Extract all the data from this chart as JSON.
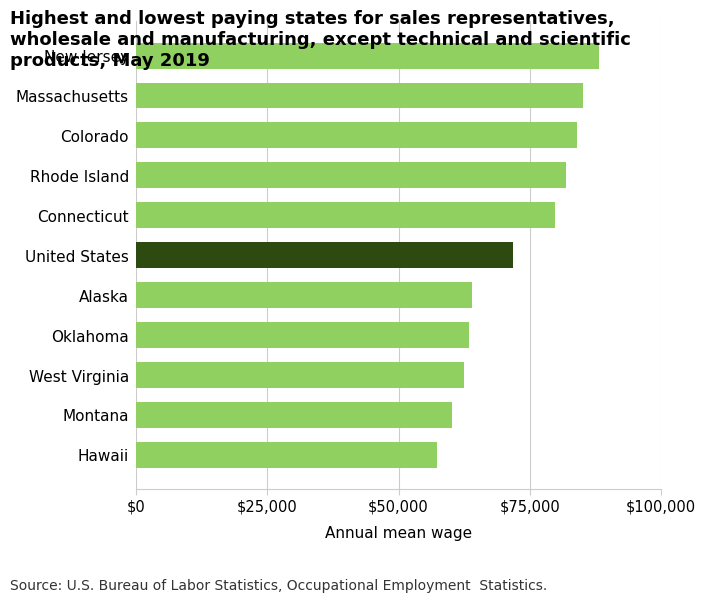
{
  "title": "Highest and lowest paying states for sales representatives,\nwholesale and manufacturing, except technical and scientific\nproducts, May 2019",
  "categories": [
    "New Jersey",
    "Massachusetts",
    "Colorado",
    "Rhode Island",
    "Connecticut",
    "United States",
    "Alaska",
    "Oklahoma",
    "West Virginia",
    "Montana",
    "Hawaii"
  ],
  "values": [
    88130,
    85150,
    84020,
    81980,
    79860,
    71870,
    63950,
    63440,
    62570,
    60230,
    57240
  ],
  "bar_colors": [
    "#90d060",
    "#90d060",
    "#90d060",
    "#90d060",
    "#90d060",
    "#2d4a10",
    "#90d060",
    "#90d060",
    "#90d060",
    "#90d060",
    "#90d060"
  ],
  "xlabel": "Annual mean wage",
  "xlim": [
    0,
    100000
  ],
  "xticks": [
    0,
    25000,
    50000,
    75000,
    100000
  ],
  "xtick_labels": [
    "$0",
    "$25,000",
    "$50,000",
    "$75,000",
    "$100,000"
  ],
  "source_text": "Source: U.S. Bureau of Labor Statistics, Occupational Employment  Statistics.",
  "background_color": "#ffffff",
  "plot_bg_color": "#ffffff",
  "title_fontsize": 13,
  "label_fontsize": 11,
  "tick_fontsize": 10.5,
  "source_fontsize": 10
}
